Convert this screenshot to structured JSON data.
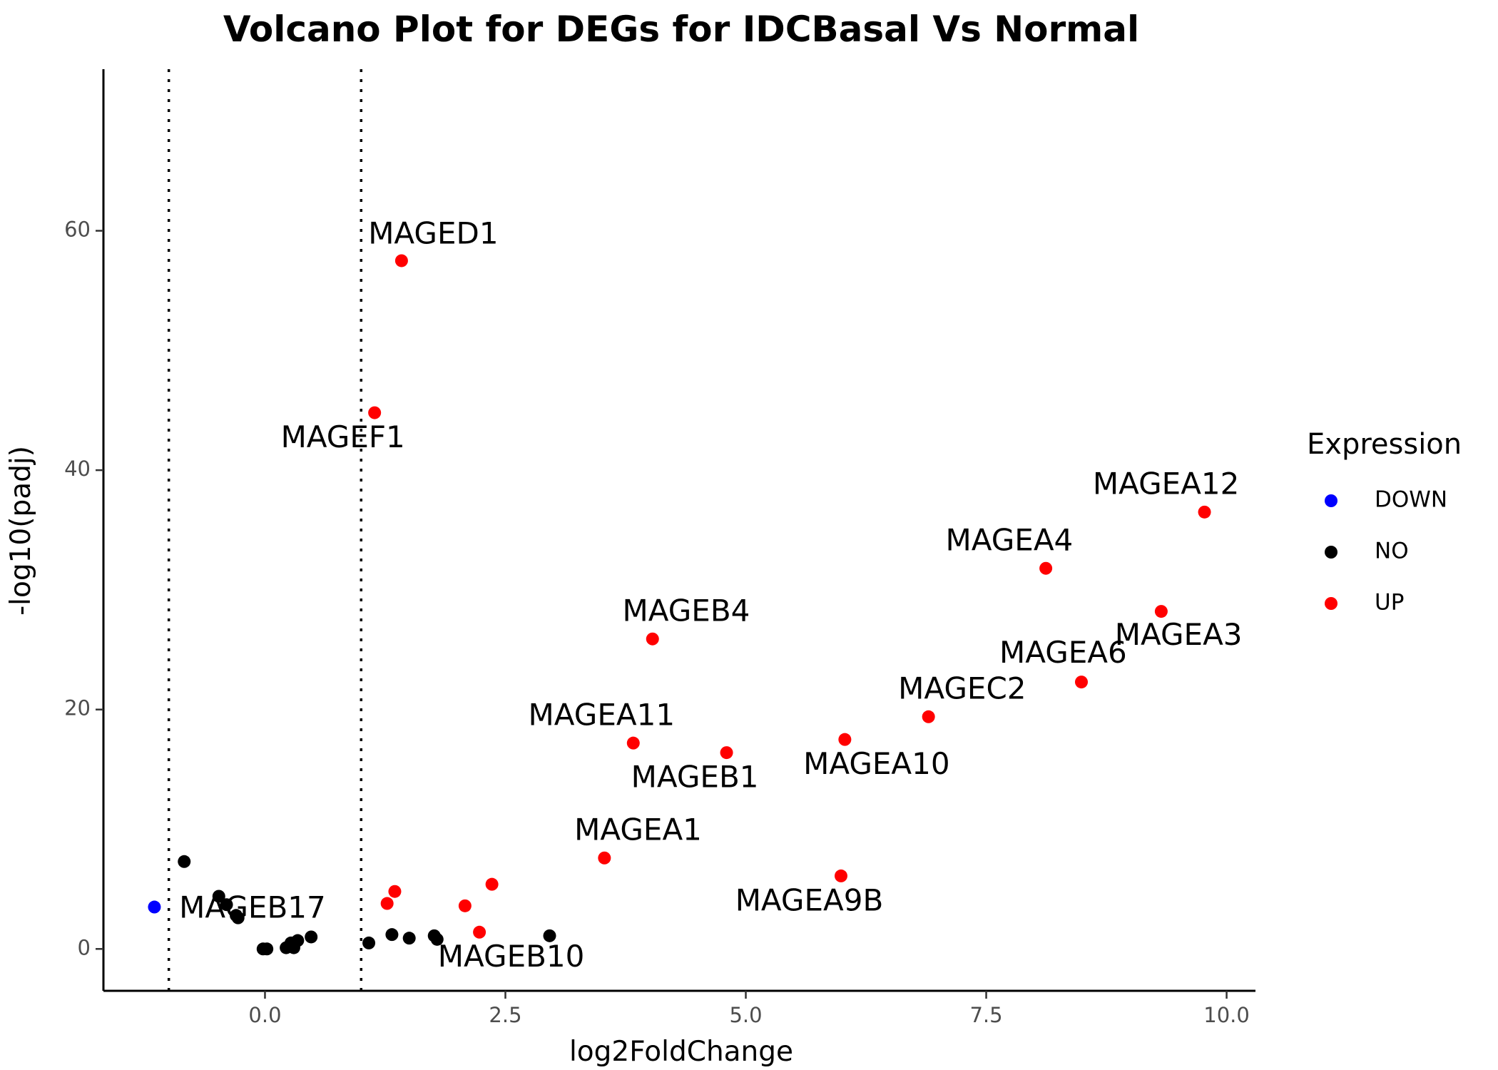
{
  "chart_data": {
    "type": "scatter",
    "title": "Volcano Plot for DEGs for IDCBasal Vs Normal",
    "xlabel": "log2FoldChange",
    "ylabel": "-log10(padj)",
    "xlim": [
      -1.68,
      10.3
    ],
    "ylim": [
      -3.5,
      73.5
    ],
    "x_ticks": [
      0.0,
      2.5,
      5.0,
      7.5,
      10.0
    ],
    "x_tick_labels": [
      "0.0",
      "2.5",
      "5.0",
      "7.5",
      "10.0"
    ],
    "y_ticks": [
      0,
      20,
      40,
      60
    ],
    "y_tick_labels": [
      "0",
      "20",
      "40",
      "60"
    ],
    "grid": false,
    "threshold_lines_x": [
      -1,
      1
    ],
    "legend": {
      "title": "Expression",
      "position": "right",
      "entries": [
        {
          "label": "DOWN",
          "color": "#0000ff"
        },
        {
          "label": "NO",
          "color": "#000000"
        },
        {
          "label": "UP",
          "color": "#ff0000"
        }
      ]
    },
    "points": [
      {
        "x": -1.15,
        "y": 3.5,
        "group": "DOWN"
      },
      {
        "x": -0.84,
        "y": 7.3,
        "group": "NO"
      },
      {
        "x": -0.48,
        "y": 4.4,
        "group": "NO"
      },
      {
        "x": -0.4,
        "y": 3.7,
        "group": "NO"
      },
      {
        "x": -0.3,
        "y": 2.8,
        "group": "NO"
      },
      {
        "x": -0.28,
        "y": 2.6,
        "group": "NO"
      },
      {
        "x": -0.02,
        "y": 0.0,
        "group": "NO"
      },
      {
        "x": 0.02,
        "y": 0.0,
        "group": "NO"
      },
      {
        "x": 0.22,
        "y": 0.1,
        "group": "NO"
      },
      {
        "x": 0.27,
        "y": 0.5,
        "group": "NO"
      },
      {
        "x": 0.3,
        "y": 0.1,
        "group": "NO"
      },
      {
        "x": 0.34,
        "y": 0.7,
        "group": "NO"
      },
      {
        "x": 0.48,
        "y": 1.0,
        "group": "NO"
      },
      {
        "x": 1.08,
        "y": 0.5,
        "group": "NO"
      },
      {
        "x": 1.32,
        "y": 1.2,
        "group": "NO"
      },
      {
        "x": 1.5,
        "y": 0.9,
        "group": "NO"
      },
      {
        "x": 1.76,
        "y": 1.1,
        "group": "NO"
      },
      {
        "x": 1.79,
        "y": 0.8,
        "group": "NO"
      },
      {
        "x": 2.96,
        "y": 1.1,
        "group": "NO"
      },
      {
        "x": 1.42,
        "y": 57.5,
        "group": "UP"
      },
      {
        "x": 1.14,
        "y": 44.8,
        "group": "UP"
      },
      {
        "x": 9.77,
        "y": 36.5,
        "group": "UP"
      },
      {
        "x": 8.12,
        "y": 31.8,
        "group": "UP"
      },
      {
        "x": 9.32,
        "y": 28.2,
        "group": "UP"
      },
      {
        "x": 4.03,
        "y": 25.9,
        "group": "UP"
      },
      {
        "x": 8.49,
        "y": 22.3,
        "group": "UP"
      },
      {
        "x": 6.9,
        "y": 19.4,
        "group": "UP"
      },
      {
        "x": 6.03,
        "y": 17.5,
        "group": "UP"
      },
      {
        "x": 3.83,
        "y": 17.2,
        "group": "UP"
      },
      {
        "x": 4.8,
        "y": 16.4,
        "group": "UP"
      },
      {
        "x": 3.53,
        "y": 7.6,
        "group": "UP"
      },
      {
        "x": 5.99,
        "y": 6.1,
        "group": "UP"
      },
      {
        "x": 2.36,
        "y": 5.4,
        "group": "UP"
      },
      {
        "x": 1.35,
        "y": 4.8,
        "group": "UP"
      },
      {
        "x": 1.27,
        "y": 3.8,
        "group": "UP"
      },
      {
        "x": 2.08,
        "y": 3.6,
        "group": "UP"
      },
      {
        "x": 2.23,
        "y": 1.4,
        "group": "UP"
      }
    ],
    "annotations": [
      {
        "text": "MAGED1",
        "x": 1.75,
        "y": 59.6
      },
      {
        "text": "MAGEF1",
        "x": 0.81,
        "y": 42.6
      },
      {
        "text": "MAGEA12",
        "x": 9.37,
        "y": 38.7
      },
      {
        "text": "MAGEA4",
        "x": 7.74,
        "y": 34.0
      },
      {
        "text": "MAGEA3",
        "x": 9.5,
        "y": 26.1
      },
      {
        "text": "MAGEB4",
        "x": 4.38,
        "y": 28.1
      },
      {
        "text": "MAGEA6",
        "x": 8.3,
        "y": 24.6
      },
      {
        "text": "MAGEC2",
        "x": 7.25,
        "y": 21.6
      },
      {
        "text": "MAGEA10",
        "x": 6.36,
        "y": 15.3
      },
      {
        "text": "MAGEA11",
        "x": 3.5,
        "y": 19.4
      },
      {
        "text": "MAGEB1",
        "x": 4.47,
        "y": 14.2
      },
      {
        "text": "MAGEA1",
        "x": 3.88,
        "y": 9.8
      },
      {
        "text": "MAGEA9B",
        "x": 5.66,
        "y": 3.9
      },
      {
        "text": "MAGEB17",
        "x": -0.13,
        "y": 3.3
      },
      {
        "text": "MAGEB10",
        "x": 2.56,
        "y": -0.8
      }
    ]
  }
}
